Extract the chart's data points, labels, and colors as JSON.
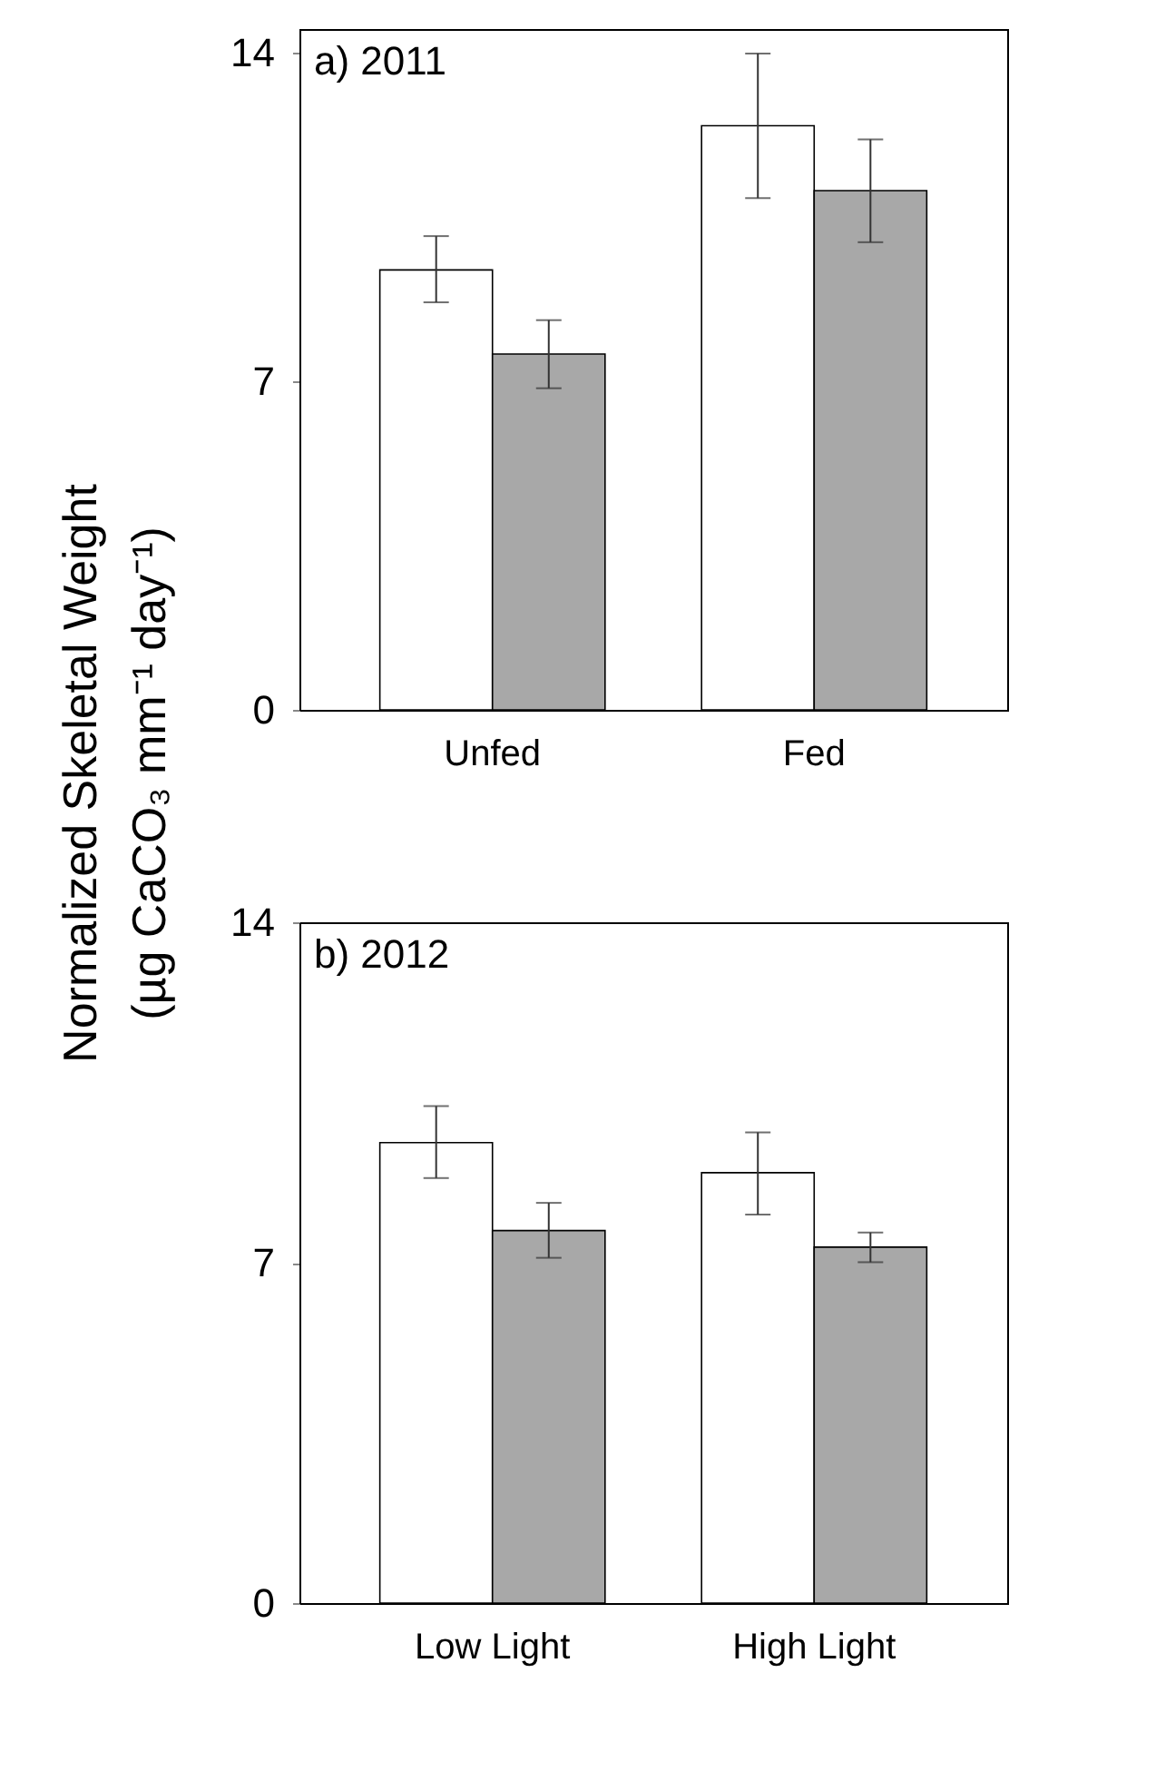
{
  "chart_data": [
    {
      "type": "bar",
      "title": "a) 2011",
      "ylabel": "Normalized Skeletal Weight\n(µg CaCO₃ mm⁻¹ day⁻¹)",
      "categories": [
        "Unfed",
        "Fed"
      ],
      "ylim": [
        0,
        14.5
      ],
      "yticks": [
        0,
        7,
        14
      ],
      "grid": false,
      "series": [
        {
          "color": "#ffffff",
          "values": [
            9.37,
            12.44
          ],
          "errors": [
            [
              8.68,
              10.09
            ],
            [
              10.9,
              13.98
            ]
          ]
        },
        {
          "color": "#a8a8a8",
          "values": [
            7.58,
            11.06
          ],
          "errors": [
            [
              6.85,
              8.3
            ],
            [
              9.96,
              12.15
            ]
          ]
        }
      ]
    },
    {
      "type": "bar",
      "title": "b) 2012",
      "categories": [
        "Low Light",
        "High Light"
      ],
      "ylim": [
        0,
        14
      ],
      "yticks": [
        0,
        7,
        14
      ],
      "grid": false,
      "series": [
        {
          "color": "#ffffff",
          "values": [
            9.47,
            8.85
          ],
          "errors": [
            [
              8.74,
              10.22
            ],
            [
              7.99,
              9.68
            ]
          ]
        },
        {
          "color": "#a8a8a8",
          "values": [
            7.66,
            7.32
          ],
          "errors": [
            [
              7.1,
              8.23
            ],
            [
              7.01,
              7.62
            ]
          ]
        }
      ]
    }
  ]
}
